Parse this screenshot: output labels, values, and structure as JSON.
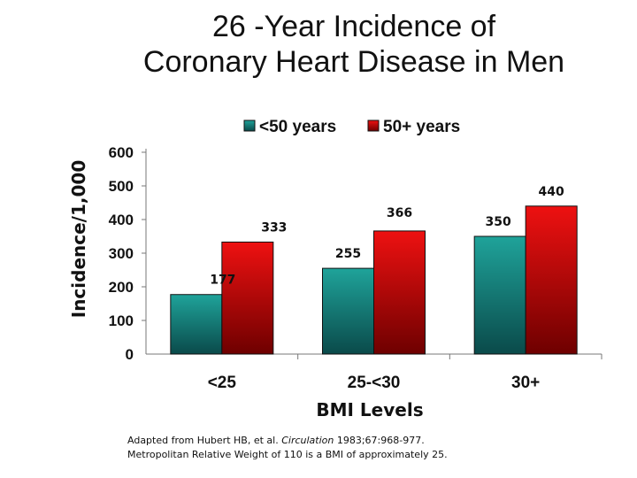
{
  "slide": {
    "title_line1": "26 -Year Incidence of",
    "title_line2": "Coronary Heart Disease in Men",
    "footnote_line1_pre": "Adapted from Hubert HB, et al. ",
    "footnote_line1_journal": "Circulation",
    "footnote_line1_post": " 1983;67:968-977.",
    "footnote_line2": "Metropolitan Relative Weight of 110 is a BMI of approximately 25."
  },
  "chart_data": {
    "type": "bar",
    "title": "",
    "xlabel": "BMI Levels",
    "ylabel": "Incidence/1,000",
    "ylim": [
      0,
      600
    ],
    "yticks": [
      0,
      100,
      200,
      300,
      400,
      500,
      600
    ],
    "categories": [
      "<25",
      "25-<30",
      "30+"
    ],
    "series": [
      {
        "name": "<50 years",
        "values": [
          177,
          255,
          350
        ],
        "color": "#1fa39a",
        "color_dark": "#0a4a4a"
      },
      {
        "name": "50+ years",
        "values": [
          333,
          366,
          440
        ],
        "color": "#ee1111",
        "color_dark": "#6e0000"
      }
    ],
    "data_labels": [
      [
        "177",
        "255",
        "350"
      ],
      [
        "333",
        "366",
        "440"
      ]
    ],
    "legend": "top"
  }
}
